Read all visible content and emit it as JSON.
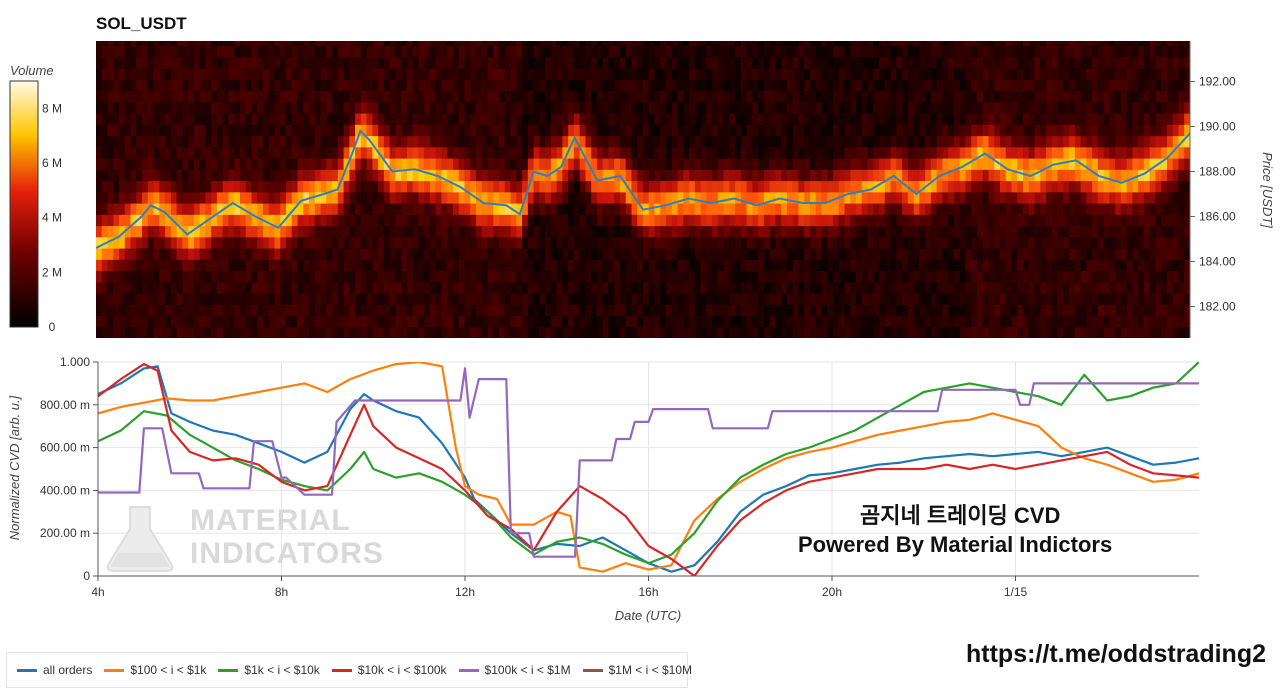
{
  "title": "SOL_USDT",
  "colorbar": {
    "label": "Volume",
    "ticks": [
      "0",
      "2 M",
      "4 M",
      "6 M",
      "8 M"
    ],
    "tick_values": [
      0,
      2,
      4,
      6,
      8
    ],
    "max": 9
  },
  "watermark": {
    "line1": "MATERIAL",
    "line2": "INDICATORS"
  },
  "overlay": {
    "line1": "곰지네 트레이딩 CVD",
    "line2": "Powered By Material Indictors"
  },
  "url": "https://t.me/oddstrading2",
  "chart_data": [
    {
      "type": "heatmap",
      "title": "SOL_USDT",
      "ylabel": "Price [USDT]",
      "ylim": [
        180.6,
        193.8
      ],
      "y_ticks": [
        "182.00",
        "184.00",
        "186.00",
        "188.00",
        "190.00",
        "192.00"
      ],
      "y_tick_values": [
        182,
        184,
        186,
        188,
        190,
        192
      ],
      "xlim": [
        4,
        28
      ],
      "colorscale": "black-red-yellow-white",
      "price_line": {
        "color": "#2f7fbf",
        "x": [
          4,
          4.5,
          5,
          5.2,
          5.5,
          6,
          6.5,
          7,
          7.5,
          8,
          8.5,
          9,
          9.3,
          9.6,
          9.8,
          10,
          10.5,
          11,
          11.5,
          12,
          12.5,
          13,
          13.3,
          13.6,
          13.9,
          14.2,
          14.5,
          15,
          15.5,
          16,
          16.5,
          17,
          17.5,
          18,
          18.5,
          19,
          19.5,
          20,
          20.5,
          21,
          21.5,
          22,
          22.5,
          23,
          23.5,
          24,
          24.5,
          25,
          25.5,
          26,
          26.5,
          27,
          27.5,
          28
        ],
        "y": [
          184.6,
          185.1,
          186.0,
          186.5,
          186.2,
          185.2,
          185.9,
          186.6,
          186.0,
          185.5,
          186.7,
          187.0,
          187.2,
          188.7,
          189.8,
          189.4,
          188.0,
          188.1,
          187.8,
          187.3,
          186.6,
          186.5,
          186.1,
          188.0,
          187.8,
          188.2,
          189.5,
          187.6,
          187.8,
          186.3,
          186.5,
          186.8,
          186.6,
          186.8,
          186.5,
          186.8,
          186.6,
          186.6,
          187.0,
          187.2,
          187.8,
          187.0,
          187.8,
          188.2,
          188.8,
          188.1,
          187.8,
          188.3,
          188.5,
          187.8,
          187.5,
          187.9,
          188.6,
          189.7
        ]
      }
    },
    {
      "type": "line",
      "xlabel": "Date (UTC)",
      "ylabel": "Normalized CVD [arb. u.]",
      "ylim": [
        0,
        1
      ],
      "y_ticks": [
        "0",
        "200.00 m",
        "400.00 m",
        "600.00 m",
        "800.00 m",
        "1.000"
      ],
      "y_tick_values": [
        0,
        0.2,
        0.4,
        0.6,
        0.8,
        1.0
      ],
      "x_ticks": [
        "4h",
        "8h",
        "12h",
        "16h",
        "20h",
        "1/15"
      ],
      "x_tick_values": [
        4,
        8,
        12,
        16,
        20,
        24
      ],
      "xlim": [
        4,
        28
      ],
      "series": [
        {
          "name": "all orders",
          "color": "#1f77b4",
          "x": [
            4,
            4.5,
            5,
            5.3,
            5.6,
            6,
            6.5,
            7,
            7.5,
            8,
            8.5,
            9,
            9.5,
            9.8,
            10,
            10.5,
            11,
            11.5,
            12,
            12.2,
            12.5,
            13,
            13.5,
            14,
            14.5,
            15,
            15.5,
            16,
            16.5,
            17,
            17.5,
            18,
            18.5,
            19,
            19.5,
            20,
            20.5,
            21,
            21.5,
            22,
            22.5,
            23,
            23.5,
            24,
            24.5,
            25,
            25.5,
            26,
            26.5,
            27,
            27.5,
            28
          ],
          "y": [
            0.85,
            0.9,
            0.97,
            0.98,
            0.76,
            0.72,
            0.68,
            0.66,
            0.62,
            0.58,
            0.53,
            0.58,
            0.78,
            0.85,
            0.82,
            0.77,
            0.74,
            0.62,
            0.46,
            0.36,
            0.3,
            0.2,
            0.12,
            0.15,
            0.14,
            0.18,
            0.12,
            0.06,
            0.02,
            0.05,
            0.16,
            0.3,
            0.38,
            0.42,
            0.47,
            0.48,
            0.5,
            0.52,
            0.53,
            0.55,
            0.56,
            0.57,
            0.56,
            0.57,
            0.58,
            0.56,
            0.58,
            0.6,
            0.56,
            0.52,
            0.53,
            0.55
          ]
        },
        {
          "name": "$100 < i < $1k",
          "color": "#ff7f0e",
          "x": [
            4,
            4.5,
            5,
            5.5,
            6,
            6.5,
            7,
            7.5,
            8,
            8.5,
            9,
            9.5,
            10,
            10.5,
            11,
            11.5,
            11.8,
            12,
            12.3,
            12.7,
            13,
            13.5,
            14,
            14.3,
            14.5,
            15,
            15.5,
            16,
            16.5,
            17,
            17.5,
            18,
            18.5,
            19,
            19.5,
            20,
            20.5,
            21,
            21.5,
            22,
            22.5,
            23,
            23.5,
            24,
            24.5,
            25,
            25.5,
            26,
            26.5,
            27,
            27.5,
            28
          ],
          "y": [
            0.76,
            0.79,
            0.81,
            0.83,
            0.82,
            0.82,
            0.84,
            0.86,
            0.88,
            0.9,
            0.86,
            0.92,
            0.96,
            0.99,
            1.0,
            0.98,
            0.6,
            0.42,
            0.38,
            0.36,
            0.24,
            0.24,
            0.3,
            0.28,
            0.04,
            0.02,
            0.06,
            0.03,
            0.05,
            0.26,
            0.36,
            0.44,
            0.5,
            0.55,
            0.58,
            0.6,
            0.63,
            0.66,
            0.68,
            0.7,
            0.72,
            0.73,
            0.76,
            0.73,
            0.7,
            0.6,
            0.55,
            0.52,
            0.48,
            0.44,
            0.45,
            0.48
          ]
        },
        {
          "name": "$1k < i < $10k",
          "color": "#2ca02c",
          "x": [
            4,
            4.5,
            5,
            5.5,
            6,
            6.5,
            7,
            7.5,
            8,
            8.5,
            9,
            9.5,
            9.8,
            10,
            10.5,
            11,
            11.5,
            12,
            12.5,
            13,
            13.5,
            14,
            14.5,
            15,
            15.5,
            16,
            16.5,
            17,
            17.5,
            18,
            18.5,
            19,
            19.5,
            20,
            20.5,
            21,
            21.5,
            22,
            22.5,
            23,
            23.5,
            24,
            24.5,
            25,
            25.5,
            26,
            26.5,
            27,
            27.5,
            28
          ],
          "y": [
            0.63,
            0.68,
            0.77,
            0.75,
            0.66,
            0.6,
            0.54,
            0.5,
            0.45,
            0.42,
            0.4,
            0.5,
            0.58,
            0.5,
            0.46,
            0.48,
            0.44,
            0.38,
            0.3,
            0.18,
            0.1,
            0.16,
            0.18,
            0.15,
            0.1,
            0.06,
            0.1,
            0.2,
            0.35,
            0.46,
            0.52,
            0.57,
            0.6,
            0.64,
            0.68,
            0.74,
            0.8,
            0.86,
            0.88,
            0.9,
            0.88,
            0.86,
            0.84,
            0.8,
            0.94,
            0.82,
            0.84,
            0.88,
            0.9,
            1.0
          ]
        },
        {
          "name": "$10k < i < $100k",
          "color": "#d62728",
          "x": [
            4,
            4.5,
            5,
            5.3,
            5.6,
            6,
            6.5,
            7,
            7.5,
            8,
            8.5,
            9,
            9.5,
            9.8,
            10,
            10.5,
            11,
            11.5,
            12,
            12.5,
            13,
            13.5,
            14,
            14.5,
            15,
            15.5,
            16,
            16.5,
            17,
            17.5,
            18,
            18.5,
            19,
            19.5,
            20,
            20.5,
            21,
            21.5,
            22,
            22.5,
            23,
            23.5,
            24,
            24.5,
            25,
            25.5,
            26,
            26.5,
            27,
            27.5,
            28
          ],
          "y": [
            0.84,
            0.92,
            0.99,
            0.96,
            0.68,
            0.58,
            0.54,
            0.55,
            0.52,
            0.44,
            0.4,
            0.42,
            0.66,
            0.8,
            0.7,
            0.6,
            0.55,
            0.5,
            0.4,
            0.28,
            0.22,
            0.12,
            0.3,
            0.42,
            0.36,
            0.28,
            0.14,
            0.08,
            0.0,
            0.14,
            0.26,
            0.34,
            0.4,
            0.44,
            0.46,
            0.48,
            0.5,
            0.5,
            0.5,
            0.52,
            0.5,
            0.52,
            0.5,
            0.52,
            0.54,
            0.56,
            0.58,
            0.52,
            0.48,
            0.47,
            0.46
          ]
        },
        {
          "name": "$100k < i < $1M",
          "color": "#9467bd",
          "x": [
            4,
            4.9,
            5,
            5.4,
            5.6,
            5.8,
            6.2,
            6.3,
            7.3,
            7.4,
            7.8,
            8,
            8.1,
            8.5,
            9.1,
            9.2,
            9.6,
            11.9,
            12.0,
            12.1,
            12.3,
            12.9,
            13.0,
            13.1,
            13.4,
            13.5,
            14.4,
            14.5,
            15.2,
            15.3,
            15.6,
            15.7,
            16,
            16.1,
            17.3,
            17.4,
            18.6,
            18.7,
            20.5,
            20.6,
            22.3,
            22.4,
            24.0,
            24.1,
            24.3,
            24.4,
            28
          ],
          "y": [
            0.39,
            0.39,
            0.69,
            0.69,
            0.48,
            0.48,
            0.48,
            0.41,
            0.41,
            0.63,
            0.63,
            0.46,
            0.46,
            0.38,
            0.38,
            0.72,
            0.82,
            0.82,
            0.97,
            0.74,
            0.92,
            0.92,
            0.2,
            0.2,
            0.2,
            0.09,
            0.09,
            0.54,
            0.54,
            0.64,
            0.64,
            0.72,
            0.72,
            0.78,
            0.78,
            0.69,
            0.69,
            0.77,
            0.77,
            0.77,
            0.77,
            0.87,
            0.87,
            0.8,
            0.8,
            0.9,
            0.9
          ]
        },
        {
          "name": "$1M < i < $10M",
          "color": "#8c564b",
          "x": [],
          "y": []
        }
      ]
    }
  ]
}
